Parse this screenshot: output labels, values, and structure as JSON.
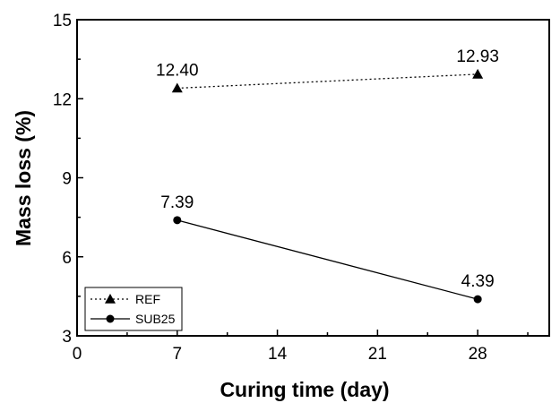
{
  "chart_data": {
    "type": "line",
    "title": "",
    "xlabel": "Curing time (day)",
    "ylabel": "Mass loss (%)",
    "xlim": [
      0,
      33
    ],
    "ylim": [
      3,
      15
    ],
    "xticks": [
      0,
      7,
      14,
      21,
      28
    ],
    "yticks": [
      3,
      6,
      9,
      12,
      15
    ],
    "grid": false,
    "legend_position": "bottom-left",
    "series": [
      {
        "name": "REF",
        "x": [
          7,
          28
        ],
        "values": [
          12.4,
          12.93
        ],
        "labels": [
          "12.40",
          "12.93"
        ],
        "line_style": "dotted",
        "marker": "triangle",
        "color": "#000000"
      },
      {
        "name": "SUB25",
        "x": [
          7,
          28
        ],
        "values": [
          7.39,
          4.39
        ],
        "labels": [
          "7.39",
          "4.39"
        ],
        "line_style": "solid",
        "marker": "circle",
        "color": "#000000"
      }
    ]
  }
}
